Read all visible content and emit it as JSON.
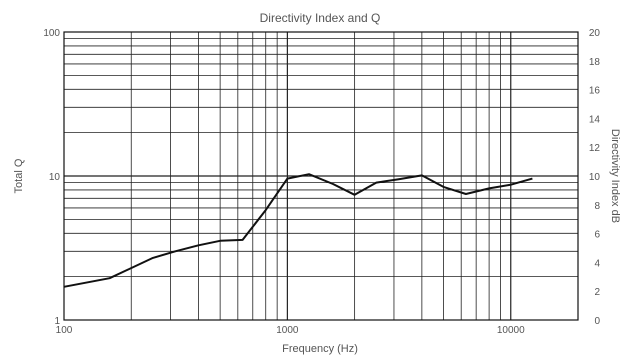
{
  "chart_data": {
    "type": "line",
    "title": "Directivity Index and Q",
    "xlabel": "Frequency (Hz)",
    "ylabel_left": "Total Q",
    "ylabel_right": "Directivity Index dB",
    "x_scale": "log",
    "y_scale_left": "log",
    "xlim": [
      100,
      20000
    ],
    "ylim_left": [
      1,
      100
    ],
    "ylim_right": [
      0,
      20
    ],
    "grid": true,
    "legend": "none",
    "x_tick_labels": [
      "100",
      "1000",
      "10000"
    ],
    "y_left_tick_labels": [
      "1",
      "10",
      "100"
    ],
    "y_right_tick_labels": [
      "0",
      "2",
      "4",
      "6",
      "8",
      "10",
      "12",
      "14",
      "16",
      "18",
      "20"
    ],
    "series": [
      {
        "color": "#111111",
        "x": [
          100,
          160,
          250,
          315,
          400,
          500,
          630,
          800,
          1000,
          1250,
          1600,
          2000,
          2500,
          3150,
          4000,
          5000,
          6300,
          8000,
          10000,
          12500
        ],
        "y": [
          1.7,
          1.95,
          2.7,
          3.0,
          3.3,
          3.55,
          3.6,
          5.8,
          9.6,
          10.3,
          8.8,
          7.4,
          9.0,
          9.5,
          10.1,
          8.4,
          7.5,
          8.2,
          8.7,
          9.6
        ]
      }
    ]
  }
}
